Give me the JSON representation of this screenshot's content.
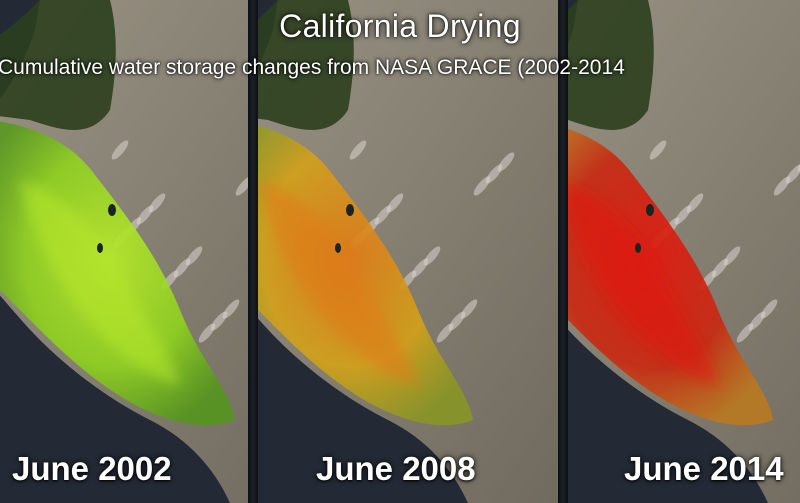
{
  "title": "California Drying",
  "subtitle": "Cumulative water storage changes from NASA GRACE (2002-2014",
  "panels": [
    {
      "label": "June 2002",
      "valley_color": "#8fd020",
      "valley_core": "#b6e82a",
      "valley_edge": "#4f9a12"
    },
    {
      "label": "June 2008",
      "valley_color": "#d2a11a",
      "valley_core": "#e07a18",
      "valley_edge": "#8a9a1a"
    },
    {
      "label": "June 2014",
      "valley_color": "#c82a12",
      "valley_core": "#e01810",
      "valley_edge": "#c47a14"
    }
  ],
  "colors": {
    "ocean": "#232a35",
    "land": "#8c8678",
    "forest": "#2c3f1e",
    "text": "#ffffff"
  }
}
